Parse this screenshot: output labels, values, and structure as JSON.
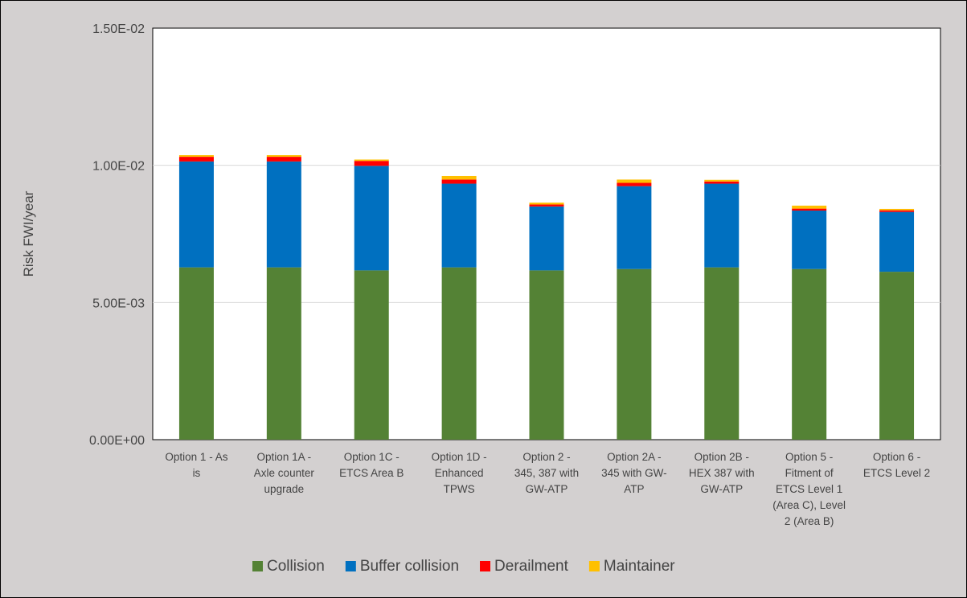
{
  "chart_data": {
    "type": "bar",
    "stacked": true,
    "categories": [
      [
        "Option 1 - As",
        "is"
      ],
      [
        "Option 1A -",
        "Axle counter",
        "upgrade"
      ],
      [
        "Option 1C -",
        "ETCS Area B"
      ],
      [
        "Option 1D -",
        "Enhanced",
        "TPWS"
      ],
      [
        "Option 2 -",
        "345, 387 with",
        "GW-ATP"
      ],
      [
        "Option 2A -",
        "345 with GW-",
        "ATP"
      ],
      [
        "Option 2B -",
        "HEX 387 with",
        "GW-ATP"
      ],
      [
        "Option 5 -",
        "Fitment of",
        "ETCS Level 1",
        "(Area C), Level",
        "2 (Area B)"
      ],
      [
        "Option 6 -",
        "ETCS Level 2"
      ]
    ],
    "series": [
      {
        "name": "Collision",
        "color": "#548235",
        "values": [
          0.00628,
          0.00628,
          0.00617,
          0.00628,
          0.00617,
          0.00622,
          0.00628,
          0.00622,
          0.00612
        ]
      },
      {
        "name": "Buffer collision",
        "color": "#0070c0",
        "values": [
          0.00386,
          0.00386,
          0.00381,
          0.00305,
          0.00233,
          0.00302,
          0.00305,
          0.00213,
          0.00218
        ]
      },
      {
        "name": "Derailment",
        "color": "#ff0000",
        "values": [
          0.00017,
          0.00017,
          0.00018,
          0.00015,
          7e-05,
          0.00012,
          8e-05,
          7e-05,
          6e-05
        ]
      },
      {
        "name": "Maintainer",
        "color": "#ffc000",
        "values": [
          6e-05,
          6e-05,
          5e-05,
          0.00013,
          7e-05,
          0.00012,
          6e-05,
          0.00011,
          5e-05
        ]
      }
    ],
    "ylabel": "Risk FWI/year",
    "xlabel": "",
    "ylim": [
      0,
      0.015
    ],
    "yticks": [
      0,
      0.005,
      0.01,
      0.015
    ],
    "ytick_labels": [
      "0.00E+00",
      "5.00E-03",
      "1.00E-02",
      "1.50E-02"
    ],
    "grid": true,
    "legend_position": "bottom"
  }
}
